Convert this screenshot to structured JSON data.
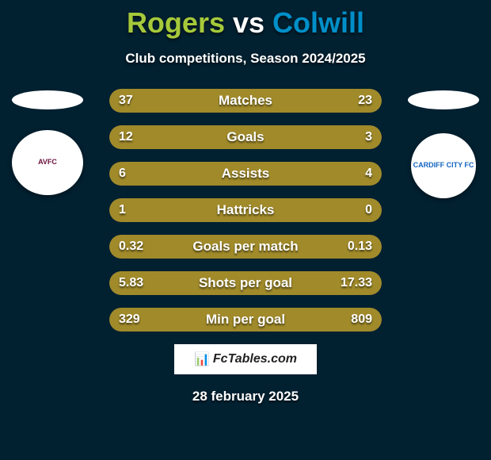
{
  "title": {
    "left": "Rogers",
    "vs": "vs",
    "right": "Colwill"
  },
  "title_colors": {
    "left": "#a6c93a",
    "vs": "#ffffff",
    "right": "#008fc9"
  },
  "subtitle": "Club competitions, Season 2024/2025",
  "crest_left_label": "AVFC",
  "crest_right_label": "CARDIFF CITY FC",
  "bars": {
    "bar_color": "#a08a2a",
    "track_color": "#2a3540",
    "rows": [
      {
        "label": "Matches",
        "left": "37",
        "right": "23",
        "l_pct": 62,
        "r_pct": 38
      },
      {
        "label": "Goals",
        "left": "12",
        "right": "3",
        "l_pct": 80,
        "r_pct": 20
      },
      {
        "label": "Assists",
        "left": "6",
        "right": "4",
        "l_pct": 60,
        "r_pct": 40
      },
      {
        "label": "Hattricks",
        "left": "1",
        "right": "0",
        "l_pct": 100,
        "r_pct": 0
      },
      {
        "label": "Goals per match",
        "left": "0.32",
        "right": "0.13",
        "l_pct": 71,
        "r_pct": 29
      },
      {
        "label": "Shots per goal",
        "left": "5.83",
        "right": "17.33",
        "l_pct": 25,
        "r_pct": 75
      },
      {
        "label": "Min per goal",
        "left": "329",
        "right": "809",
        "l_pct": 29,
        "r_pct": 71
      }
    ]
  },
  "footer_brand": "FcTables.com",
  "date": "28 february 2025"
}
